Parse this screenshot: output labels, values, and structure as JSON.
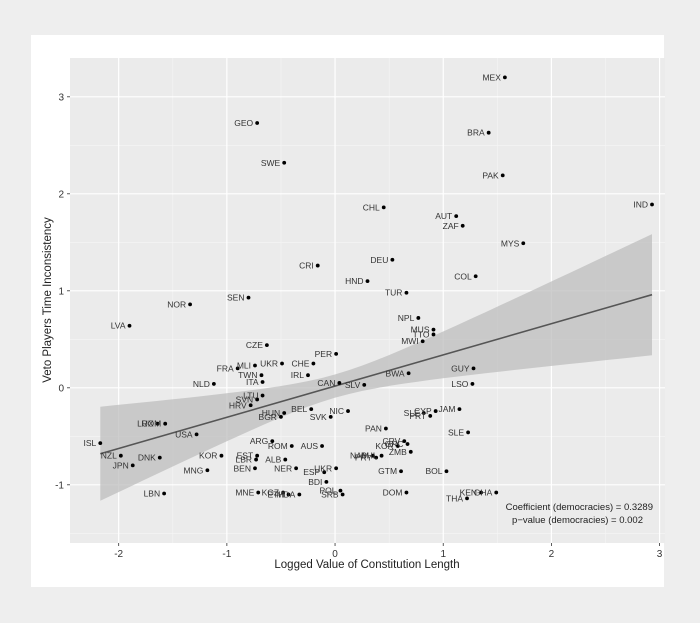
{
  "chart_data": {
    "type": "scatter",
    "title": "",
    "xlabel": "Logged Value of Constitution Length",
    "ylabel": "Veto Players Time Inconsistency",
    "xlim": [
      -2.45,
      3.05
    ],
    "ylim": [
      -1.6,
      3.4
    ],
    "x_ticks": [
      -2,
      -1,
      0,
      1,
      2,
      3
    ],
    "y_ticks": [
      -1,
      0,
      1,
      2,
      3
    ],
    "grid": true,
    "background": "#ebebeb",
    "point_color": "#000000",
    "fit": {
      "type": "linear",
      "x_range": [
        -2.17,
        2.93
      ],
      "y_start": -0.68,
      "y_end": 0.96,
      "ci_start": [
        -1.22,
        -0.25
      ],
      "ci_end": [
        0.33,
        1.58
      ],
      "line_color": "#555555",
      "band_color": "#bdbdbd"
    },
    "annotations": [
      "Coefficient (democracies) = 0.3289",
      "p−value (democracies) = 0.002"
    ],
    "points": [
      {
        "label": "MEX",
        "x": 1.57,
        "y": 3.2
      },
      {
        "label": "GEO",
        "x": -0.72,
        "y": 2.73
      },
      {
        "label": "BRA",
        "x": 1.42,
        "y": 2.63
      },
      {
        "label": "SWE",
        "x": -0.47,
        "y": 2.32
      },
      {
        "label": "PAK",
        "x": 1.55,
        "y": 2.19
      },
      {
        "label": "IND",
        "x": 2.93,
        "y": 1.89
      },
      {
        "label": "CHL",
        "x": 0.45,
        "y": 1.86
      },
      {
        "label": "AUT",
        "x": 1.12,
        "y": 1.77
      },
      {
        "label": "ZAF",
        "x": 1.18,
        "y": 1.67
      },
      {
        "label": "MYS",
        "x": 1.74,
        "y": 1.49
      },
      {
        "label": "DEU",
        "x": 0.53,
        "y": 1.32
      },
      {
        "label": "CRI",
        "x": -0.16,
        "y": 1.26
      },
      {
        "label": "COL",
        "x": 1.3,
        "y": 1.15
      },
      {
        "label": "HND",
        "x": 0.3,
        "y": 1.1
      },
      {
        "label": "TUR",
        "x": 0.66,
        "y": 0.98
      },
      {
        "label": "SEN",
        "x": -0.8,
        "y": 0.93
      },
      {
        "label": "NOR",
        "x": -1.34,
        "y": 0.86
      },
      {
        "label": "NPL",
        "x": 0.77,
        "y": 0.72
      },
      {
        "label": "LVA",
        "x": -1.9,
        "y": 0.64
      },
      {
        "label": "MUS",
        "x": 0.91,
        "y": 0.6
      },
      {
        "label": "TTO",
        "x": 0.91,
        "y": 0.55
      },
      {
        "label": "MWI",
        "x": 0.81,
        "y": 0.48
      },
      {
        "label": "CZE",
        "x": -0.63,
        "y": 0.44
      },
      {
        "label": "PER",
        "x": 0.01,
        "y": 0.35
      },
      {
        "label": "CHE",
        "x": -0.2,
        "y": 0.25
      },
      {
        "label": "UKR",
        "x": -0.49,
        "y": 0.25
      },
      {
        "label": "MLI",
        "x": -0.74,
        "y": 0.23
      },
      {
        "label": "FRA",
        "x": -0.9,
        "y": 0.2
      },
      {
        "label": "GUY",
        "x": 1.28,
        "y": 0.2
      },
      {
        "label": "TWN",
        "x": -0.68,
        "y": 0.13
      },
      {
        "label": "IRL",
        "x": -0.25,
        "y": 0.13
      },
      {
        "label": "BWA",
        "x": 0.68,
        "y": 0.15
      },
      {
        "label": "CAN",
        "x": 0.04,
        "y": 0.05
      },
      {
        "label": "SLV",
        "x": 0.27,
        "y": 0.03
      },
      {
        "label": "ITA",
        "x": -0.67,
        "y": 0.06
      },
      {
        "label": "NLD",
        "x": -1.12,
        "y": 0.04
      },
      {
        "label": "LSO",
        "x": 1.27,
        "y": 0.04
      },
      {
        "label": "LTU",
        "x": -0.67,
        "y": -0.08
      },
      {
        "label": "SVN",
        "x": -0.72,
        "y": -0.12
      },
      {
        "label": "HRV",
        "x": -0.78,
        "y": -0.18
      },
      {
        "label": "BEL",
        "x": -0.22,
        "y": -0.22
      },
      {
        "label": "NIC",
        "x": 0.12,
        "y": -0.24
      },
      {
        "label": "HUN",
        "x": -0.47,
        "y": -0.26
      },
      {
        "label": "BGR",
        "x": -0.5,
        "y": -0.3
      },
      {
        "label": "SVK",
        "x": -0.04,
        "y": -0.3
      },
      {
        "label": "JAM",
        "x": 1.15,
        "y": -0.22
      },
      {
        "label": "CYP",
        "x": 0.93,
        "y": -0.24
      },
      {
        "label": "SLE",
        "x": 0.82,
        "y": -0.26
      },
      {
        "label": "PRT",
        "x": 0.88,
        "y": -0.29
      },
      {
        "label": "LUX",
        "x": -1.64,
        "y": -0.37
      },
      {
        "label": "ROM",
        "x": -1.57,
        "y": -0.37
      },
      {
        "label": "PAN",
        "x": 0.47,
        "y": -0.42
      },
      {
        "label": "SLE",
        "x": 1.23,
        "y": -0.46
      },
      {
        "label": "USA",
        "x": -1.28,
        "y": -0.48
      },
      {
        "label": "ARG",
        "x": -0.58,
        "y": -0.55
      },
      {
        "label": "CRV",
        "x": 0.64,
        "y": -0.55
      },
      {
        "label": "GRC",
        "x": 0.67,
        "y": -0.58
      },
      {
        "label": "KOR",
        "x": 0.58,
        "y": -0.6
      },
      {
        "label": "ISL",
        "x": -2.17,
        "y": -0.57
      },
      {
        "label": "ROM",
        "x": -0.4,
        "y": -0.6
      },
      {
        "label": "AUS",
        "x": -0.12,
        "y": -0.6
      },
      {
        "label": "ZMB",
        "x": 0.7,
        "y": -0.66
      },
      {
        "label": "NAM",
        "x": 0.35,
        "y": -0.7
      },
      {
        "label": "PHL",
        "x": 0.43,
        "y": -0.7
      },
      {
        "label": "PRY",
        "x": 0.38,
        "y": -0.72
      },
      {
        "label": "NZL",
        "x": -1.98,
        "y": -0.7
      },
      {
        "label": "DNK",
        "x": -1.62,
        "y": -0.72
      },
      {
        "label": "KOR",
        "x": -1.05,
        "y": -0.7
      },
      {
        "label": "EST",
        "x": -0.72,
        "y": -0.7
      },
      {
        "label": "LBR",
        "x": -0.73,
        "y": -0.74
      },
      {
        "label": "ALB",
        "x": -0.46,
        "y": -0.74
      },
      {
        "label": "JPN",
        "x": -1.87,
        "y": -0.8
      },
      {
        "label": "MNG",
        "x": -1.18,
        "y": -0.85
      },
      {
        "label": "BEN",
        "x": -0.74,
        "y": -0.83
      },
      {
        "label": "NER",
        "x": -0.36,
        "y": -0.83
      },
      {
        "label": "ESP",
        "x": -0.1,
        "y": -0.87
      },
      {
        "label": "UKR",
        "x": 0.01,
        "y": -0.83
      },
      {
        "label": "GTM",
        "x": 0.61,
        "y": -0.86
      },
      {
        "label": "BOL",
        "x": 1.03,
        "y": -0.86
      },
      {
        "label": "BDI",
        "x": -0.08,
        "y": -0.97
      },
      {
        "label": "LBN",
        "x": -1.58,
        "y": -1.09
      },
      {
        "label": "MNE",
        "x": -0.71,
        "y": -1.08
      },
      {
        "label": "KGZ",
        "x": -0.48,
        "y": -1.08
      },
      {
        "label": "ETH",
        "x": -0.43,
        "y": -1.1
      },
      {
        "label": "MDA",
        "x": -0.33,
        "y": -1.1
      },
      {
        "label": "POL",
        "x": 0.05,
        "y": -1.06
      },
      {
        "label": "SRB",
        "x": 0.07,
        "y": -1.1
      },
      {
        "label": "DOM",
        "x": 0.66,
        "y": -1.08
      },
      {
        "label": "KEN",
        "x": 1.35,
        "y": -1.08
      },
      {
        "label": "GHA",
        "x": 1.49,
        "y": -1.08
      },
      {
        "label": "THA",
        "x": 1.22,
        "y": -1.14
      }
    ]
  }
}
